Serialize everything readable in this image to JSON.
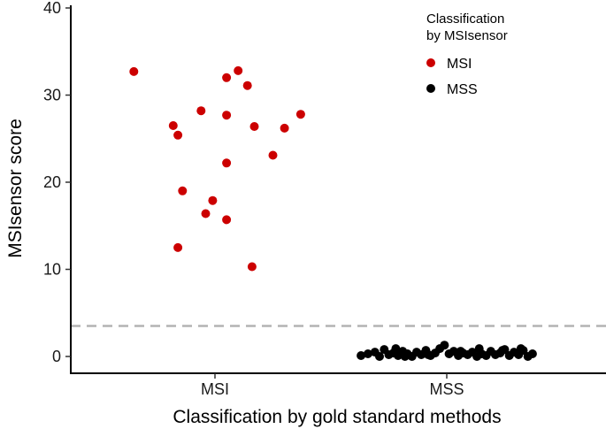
{
  "chart_data": {
    "type": "scatter",
    "title": "",
    "xlabel": "Classification by gold standard methods",
    "ylabel": "MSIsensor score",
    "categories": [
      "MSI",
      "MSS"
    ],
    "ylim": [
      -2,
      40
    ],
    "yticks": [
      0,
      10,
      20,
      30,
      40
    ],
    "grid": false,
    "threshold": {
      "y": 3.5,
      "style": "dashed",
      "color": "#b3b3b3"
    },
    "legend": {
      "title": "Classification\nby MSIsensor",
      "placement": "top-right",
      "entries": [
        {
          "label": "MSI",
          "color": "#cc0000"
        },
        {
          "label": "MSS",
          "color": "#000000"
        }
      ]
    },
    "series": [
      {
        "name": "MSI",
        "color": "#cc0000",
        "points": [
          {
            "category": "MSI",
            "jitter": -0.35,
            "y": 32.7
          },
          {
            "category": "MSI",
            "jitter": -0.18,
            "y": 26.5
          },
          {
            "category": "MSI",
            "jitter": -0.16,
            "y": 25.4
          },
          {
            "category": "MSI",
            "jitter": -0.06,
            "y": 28.2
          },
          {
            "category": "MSI",
            "jitter": -0.14,
            "y": 19.0
          },
          {
            "category": "MSI",
            "jitter": -0.01,
            "y": 17.9
          },
          {
            "category": "MSI",
            "jitter": -0.04,
            "y": 16.4
          },
          {
            "category": "MSI",
            "jitter": -0.16,
            "y": 12.5
          },
          {
            "category": "MSI",
            "jitter": 0.05,
            "y": 32.0
          },
          {
            "category": "MSI",
            "jitter": 0.1,
            "y": 32.8
          },
          {
            "category": "MSI",
            "jitter": 0.14,
            "y": 31.1
          },
          {
            "category": "MSI",
            "jitter": 0.05,
            "y": 27.7
          },
          {
            "category": "MSI",
            "jitter": 0.17,
            "y": 26.4
          },
          {
            "category": "MSI",
            "jitter": 0.3,
            "y": 26.2
          },
          {
            "category": "MSI",
            "jitter": 0.37,
            "y": 27.8
          },
          {
            "category": "MSI",
            "jitter": 0.25,
            "y": 23.1
          },
          {
            "category": "MSI",
            "jitter": 0.05,
            "y": 22.2
          },
          {
            "category": "MSI",
            "jitter": 0.05,
            "y": 15.7
          },
          {
            "category": "MSI",
            "jitter": 0.16,
            "y": 10.3
          }
        ]
      },
      {
        "name": "MSS",
        "color": "#000000",
        "points": [
          {
            "category": "MSS",
            "jitter": -0.37,
            "y": 0.1
          },
          {
            "category": "MSS",
            "jitter": -0.34,
            "y": 0.3
          },
          {
            "category": "MSS",
            "jitter": -0.31,
            "y": 0.5
          },
          {
            "category": "MSS",
            "jitter": -0.29,
            "y": 0.0
          },
          {
            "category": "MSS",
            "jitter": -0.27,
            "y": 0.8
          },
          {
            "category": "MSS",
            "jitter": -0.25,
            "y": 0.2
          },
          {
            "category": "MSS",
            "jitter": -0.23,
            "y": 0.4
          },
          {
            "category": "MSS",
            "jitter": -0.21,
            "y": 0.1
          },
          {
            "category": "MSS",
            "jitter": -0.19,
            "y": 0.6
          },
          {
            "category": "MSS",
            "jitter": -0.17,
            "y": 0.3
          },
          {
            "category": "MSS",
            "jitter": -0.15,
            "y": 0.0
          },
          {
            "category": "MSS",
            "jitter": -0.13,
            "y": 0.5
          },
          {
            "category": "MSS",
            "jitter": -0.11,
            "y": 0.2
          },
          {
            "category": "MSS",
            "jitter": -0.09,
            "y": 0.7
          },
          {
            "category": "MSS",
            "jitter": -0.07,
            "y": 0.1
          },
          {
            "category": "MSS",
            "jitter": -0.05,
            "y": 0.4
          },
          {
            "category": "MSS",
            "jitter": -0.03,
            "y": 0.9
          },
          {
            "category": "MSS",
            "jitter": -0.01,
            "y": 1.3
          },
          {
            "category": "MSS",
            "jitter": 0.01,
            "y": 0.3
          },
          {
            "category": "MSS",
            "jitter": 0.03,
            "y": 0.6
          },
          {
            "category": "MSS",
            "jitter": 0.05,
            "y": 0.1
          },
          {
            "category": "MSS",
            "jitter": 0.07,
            "y": 0.4
          },
          {
            "category": "MSS",
            "jitter": 0.09,
            "y": 0.2
          },
          {
            "category": "MSS",
            "jitter": 0.11,
            "y": 0.5
          },
          {
            "category": "MSS",
            "jitter": 0.13,
            "y": 0.0
          },
          {
            "category": "MSS",
            "jitter": 0.15,
            "y": 0.3
          },
          {
            "category": "MSS",
            "jitter": 0.17,
            "y": 0.1
          },
          {
            "category": "MSS",
            "jitter": 0.19,
            "y": 0.6
          },
          {
            "category": "MSS",
            "jitter": 0.21,
            "y": 0.2
          },
          {
            "category": "MSS",
            "jitter": 0.23,
            "y": 0.4
          },
          {
            "category": "MSS",
            "jitter": 0.25,
            "y": 0.8
          },
          {
            "category": "MSS",
            "jitter": 0.27,
            "y": 0.1
          },
          {
            "category": "MSS",
            "jitter": 0.29,
            "y": 0.5
          },
          {
            "category": "MSS",
            "jitter": 0.31,
            "y": 0.2
          },
          {
            "category": "MSS",
            "jitter": 0.33,
            "y": 0.7
          },
          {
            "category": "MSS",
            "jitter": 0.35,
            "y": 0.0
          },
          {
            "category": "MSS",
            "jitter": 0.37,
            "y": 0.3
          },
          {
            "category": "MSS",
            "jitter": -0.22,
            "y": 0.9
          },
          {
            "category": "MSS",
            "jitter": 0.14,
            "y": 0.9
          },
          {
            "category": "MSS",
            "jitter": 0.32,
            "y": 0.9
          },
          {
            "category": "MSS",
            "jitter": 0.24,
            "y": 0.7
          },
          {
            "category": "MSS",
            "jitter": -0.08,
            "y": 0.2
          },
          {
            "category": "MSS",
            "jitter": 0.06,
            "y": 0.6
          },
          {
            "category": "MSS",
            "jitter": -0.18,
            "y": 0.0
          }
        ]
      }
    ]
  }
}
